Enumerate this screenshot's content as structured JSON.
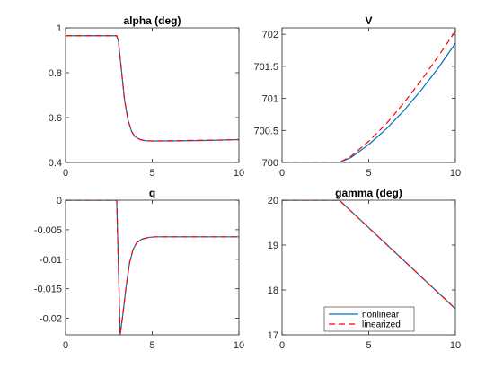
{
  "chart_data": [
    {
      "type": "line",
      "title": "alpha (deg)",
      "xlim": [
        0,
        10
      ],
      "ylim": [
        0.4,
        1
      ],
      "xticks": [
        0,
        5,
        10
      ],
      "xtick_labels": [
        "0",
        "5",
        "10"
      ],
      "yticks": [
        0.4,
        0.6,
        0.8,
        1
      ],
      "ytick_labels": [
        "0.4",
        "0.6",
        "0.8",
        "1"
      ],
      "series": [
        {
          "name": "nonlinear",
          "color": "#0072BD",
          "dash": "solid",
          "x": [
            0,
            2.95,
            3.05,
            3.2,
            3.4,
            3.6,
            3.8,
            4.0,
            4.3,
            4.6,
            5.0,
            6,
            7,
            8,
            9,
            10
          ],
          "y": [
            0.965,
            0.965,
            0.94,
            0.83,
            0.68,
            0.59,
            0.54,
            0.515,
            0.502,
            0.497,
            0.496,
            0.496,
            0.497,
            0.498,
            0.5,
            0.502
          ]
        },
        {
          "name": "linearized",
          "color": "#FF0000",
          "dash": "dashed",
          "x": [
            0,
            2.95,
            3.05,
            3.2,
            3.4,
            3.6,
            3.8,
            4.0,
            4.3,
            4.6,
            5.0,
            6,
            7,
            8,
            9,
            10
          ],
          "y": [
            0.965,
            0.965,
            0.94,
            0.83,
            0.68,
            0.59,
            0.54,
            0.515,
            0.502,
            0.497,
            0.496,
            0.497,
            0.498,
            0.499,
            0.5,
            0.502
          ]
        }
      ]
    },
    {
      "type": "line",
      "title": "V",
      "xlim": [
        0,
        10
      ],
      "ylim": [
        700,
        702.1
      ],
      "xticks": [
        0,
        5,
        10
      ],
      "xtick_labels": [
        "0",
        "5",
        "10"
      ],
      "yticks": [
        700,
        700.5,
        701,
        701.5,
        702
      ],
      "ytick_labels": [
        "700",
        "700.5",
        "701",
        "701.5",
        "702"
      ],
      "series": [
        {
          "name": "nonlinear",
          "color": "#0072BD",
          "dash": "solid",
          "x": [
            0,
            3.3,
            4,
            5,
            6,
            7,
            8,
            9,
            10
          ],
          "y": [
            700,
            700,
            700.08,
            700.28,
            700.52,
            700.8,
            701.12,
            701.47,
            701.86
          ]
        },
        {
          "name": "linearized",
          "color": "#FF0000",
          "dash": "dashed",
          "x": [
            0,
            3.3,
            4,
            5,
            6,
            7,
            8,
            9,
            10
          ],
          "y": [
            700,
            700,
            700.1,
            700.33,
            700.6,
            700.92,
            701.27,
            701.65,
            702.05
          ]
        }
      ]
    },
    {
      "type": "line",
      "title": "q",
      "xlim": [
        0,
        10
      ],
      "ylim": [
        -0.0228,
        0
      ],
      "xticks": [
        0,
        5,
        10
      ],
      "xtick_labels": [
        "0",
        "5",
        "10"
      ],
      "yticks": [
        0,
        -0.005,
        -0.01,
        -0.015,
        -0.02
      ],
      "ytick_labels": [
        "0",
        "-0.005",
        "-0.01",
        "-0.015",
        "-0.02"
      ],
      "series": [
        {
          "name": "nonlinear",
          "color": "#0072BD",
          "dash": "solid",
          "x": [
            0,
            2.95,
            3.15,
            3.3,
            3.5,
            3.7,
            3.9,
            4.1,
            4.4,
            4.8,
            5.2,
            6,
            7,
            8,
            9,
            10
          ],
          "y": [
            0,
            0,
            -0.0228,
            -0.0195,
            -0.0145,
            -0.0105,
            -0.0083,
            -0.0072,
            -0.0066,
            -0.0063,
            -0.0062,
            -0.0062,
            -0.0062,
            -0.0062,
            -0.0062,
            -0.0062
          ]
        },
        {
          "name": "linearized",
          "color": "#FF0000",
          "dash": "dashed",
          "x": [
            0,
            2.95,
            3.15,
            3.3,
            3.5,
            3.7,
            3.9,
            4.1,
            4.4,
            4.8,
            5.2,
            6,
            7,
            8,
            9,
            10
          ],
          "y": [
            0,
            0,
            -0.0228,
            -0.0195,
            -0.0145,
            -0.0105,
            -0.0083,
            -0.0072,
            -0.0066,
            -0.0063,
            -0.0062,
            -0.0062,
            -0.0062,
            -0.0062,
            -0.0062,
            -0.0062
          ]
        }
      ]
    },
    {
      "type": "line",
      "title": "gamma (deg)",
      "xlim": [
        0,
        10
      ],
      "ylim": [
        17,
        20
      ],
      "xticks": [
        0,
        5,
        10
      ],
      "xtick_labels": [
        "0",
        "5",
        "10"
      ],
      "yticks": [
        17,
        18,
        19,
        20
      ],
      "ytick_labels": [
        "17",
        "18",
        "19",
        "20"
      ],
      "legend": {
        "location": "bottom-center",
        "entries": [
          "nonlinear",
          "linearized"
        ]
      },
      "series": [
        {
          "name": "nonlinear",
          "color": "#0072BD",
          "dash": "solid",
          "x": [
            0,
            3.3,
            10
          ],
          "y": [
            20,
            20,
            17.58
          ]
        },
        {
          "name": "linearized",
          "color": "#FF0000",
          "dash": "dashed",
          "x": [
            0,
            3.3,
            10
          ],
          "y": [
            20,
            20,
            17.58
          ]
        }
      ]
    }
  ]
}
